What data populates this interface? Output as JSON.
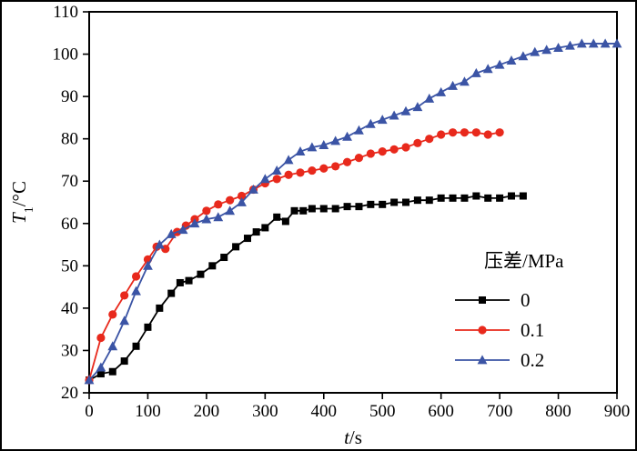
{
  "figure": {
    "background": "#ffffff",
    "border_color": "#000000"
  },
  "chart_data": {
    "type": "line",
    "title": "",
    "xlabel": {
      "var": "t",
      "rest": "/s"
    },
    "ylabel": {
      "var": "T",
      "sub": "1",
      "rest": "/°C"
    },
    "xlim": [
      0,
      900
    ],
    "ylim": [
      20,
      110
    ],
    "xticks": [
      0,
      100,
      200,
      300,
      400,
      500,
      600,
      700,
      800,
      900
    ],
    "yticks": [
      20,
      30,
      40,
      50,
      60,
      70,
      80,
      90,
      100,
      110
    ],
    "grid": false,
    "legend": {
      "title": "压差/MPa",
      "position": "inside lower right"
    },
    "series": [
      {
        "name": "0",
        "color": "#000000",
        "marker": "square",
        "x": [
          0,
          20,
          40,
          60,
          80,
          100,
          120,
          140,
          155,
          170,
          190,
          210,
          230,
          250,
          270,
          285,
          300,
          320,
          335,
          350,
          365,
          380,
          400,
          420,
          440,
          460,
          480,
          500,
          520,
          540,
          560,
          580,
          600,
          620,
          640,
          660,
          680,
          700,
          720,
          740
        ],
        "y": [
          23,
          24.5,
          25,
          27.5,
          31,
          35.5,
          40,
          43.5,
          46,
          46.5,
          48,
          50,
          52,
          54.5,
          56.5,
          58,
          59,
          61.5,
          60.5,
          63,
          63,
          63.5,
          63.5,
          63.5,
          64,
          64,
          64.5,
          64.5,
          65,
          65,
          65.5,
          65.5,
          66,
          66,
          66,
          66.5,
          66,
          66,
          66.5,
          66.5
        ]
      },
      {
        "name": "0.1",
        "color": "#e8291c",
        "marker": "circle",
        "x": [
          0,
          20,
          40,
          60,
          80,
          100,
          115,
          130,
          150,
          165,
          180,
          200,
          220,
          240,
          260,
          280,
          300,
          320,
          340,
          360,
          380,
          400,
          420,
          440,
          460,
          480,
          500,
          520,
          540,
          560,
          580,
          600,
          620,
          640,
          660,
          680,
          700
        ],
        "y": [
          23,
          33,
          38.5,
          43,
          47.5,
          51.5,
          54.5,
          54,
          58,
          59.5,
          61,
          63,
          64.5,
          65.5,
          66.5,
          68,
          69.5,
          70.5,
          71.5,
          72,
          72.5,
          73,
          73.5,
          74.5,
          75.5,
          76.5,
          77,
          77.5,
          78,
          79,
          80,
          81,
          81.5,
          81.5,
          81.5,
          81,
          81.5
        ]
      },
      {
        "name": "0.2",
        "color": "#3b54a5",
        "marker": "triangle",
        "x": [
          0,
          20,
          40,
          60,
          80,
          100,
          120,
          140,
          160,
          180,
          200,
          220,
          240,
          260,
          280,
          300,
          320,
          340,
          360,
          380,
          400,
          420,
          440,
          460,
          480,
          500,
          520,
          540,
          560,
          580,
          600,
          620,
          640,
          660,
          680,
          700,
          720,
          740,
          760,
          780,
          800,
          820,
          840,
          860,
          880,
          900
        ],
        "y": [
          23,
          26,
          31,
          37,
          44,
          50,
          55,
          57.5,
          58.5,
          60,
          61,
          61.5,
          63,
          65,
          68,
          70.5,
          72.5,
          75,
          77,
          78,
          78.5,
          79.5,
          80.5,
          82,
          83.5,
          84.5,
          85.5,
          86.5,
          87.5,
          89.5,
          91,
          92.5,
          93.5,
          95.5,
          96.5,
          97.5,
          98.5,
          99.5,
          100.5,
          101,
          101.5,
          102,
          102.5,
          102.5,
          102.5,
          102.5
        ]
      }
    ]
  }
}
